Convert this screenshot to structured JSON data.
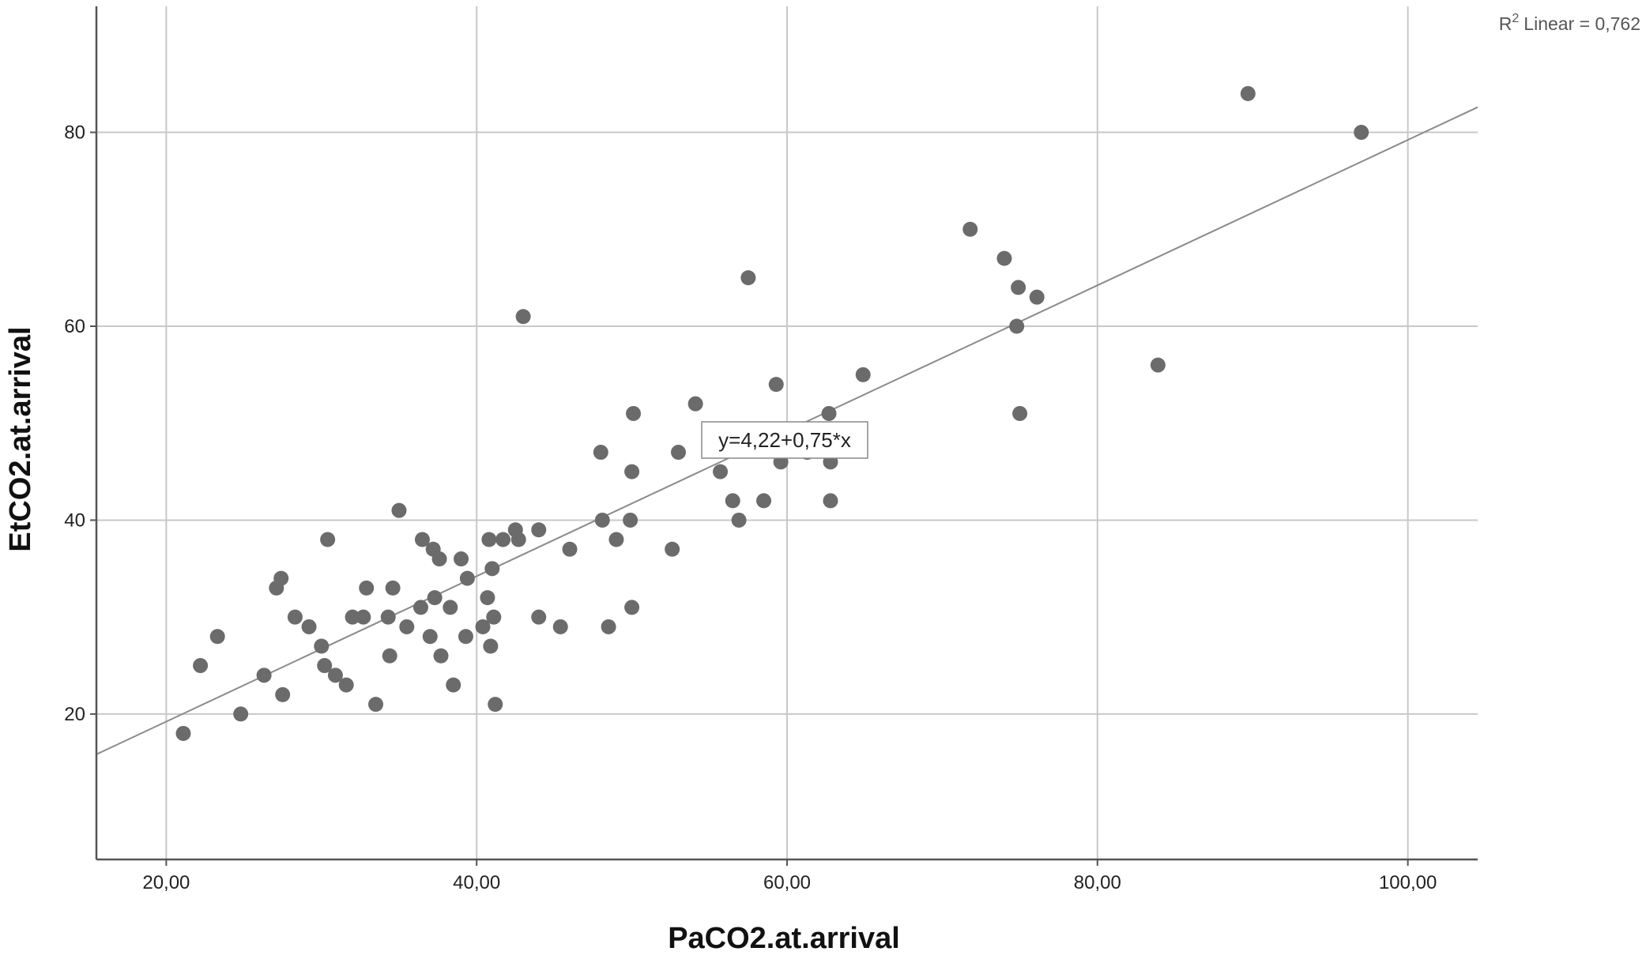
{
  "chart_data": {
    "type": "scatter",
    "xlabel": "PaCO2.at.arrival",
    "ylabel": "EtCO2.at.arrival",
    "xlim": [
      15.5,
      104.5
    ],
    "ylim": [
      5,
      93
    ],
    "x_ticks": [
      20,
      40,
      60,
      80,
      100
    ],
    "x_tick_labels": [
      "20,00",
      "40,00",
      "60,00",
      "80,00",
      "100,00"
    ],
    "y_ticks": [
      20,
      40,
      60,
      80
    ],
    "y_tick_labels": [
      "20",
      "40",
      "60",
      "80"
    ],
    "grid": true,
    "r2_label": "Linear = 0,762",
    "r2_prefix": "R",
    "r2_superscript": "2",
    "fit_line": {
      "intercept": 4.22,
      "slope": 0.75,
      "label": "y=4,22+0,75*x"
    },
    "colors": {
      "points": "#6b6b6b",
      "line": "#8a8a8a",
      "grid": "#c8c8c8",
      "axis": "#555555"
    },
    "points": [
      [
        21.1,
        18
      ],
      [
        22.2,
        25
      ],
      [
        23.3,
        28
      ],
      [
        24.8,
        20
      ],
      [
        26.3,
        24
      ],
      [
        27.1,
        33
      ],
      [
        27.4,
        34
      ],
      [
        27.5,
        22
      ],
      [
        28.3,
        30
      ],
      [
        29.2,
        29
      ],
      [
        30.0,
        27
      ],
      [
        30.2,
        25
      ],
      [
        30.4,
        38
      ],
      [
        30.9,
        24
      ],
      [
        31.6,
        23
      ],
      [
        32.0,
        30
      ],
      [
        32.7,
        30
      ],
      [
        32.9,
        33
      ],
      [
        33.5,
        21
      ],
      [
        34.3,
        30
      ],
      [
        34.4,
        26
      ],
      [
        34.6,
        33
      ],
      [
        35.0,
        41
      ],
      [
        35.5,
        29
      ],
      [
        36.4,
        31
      ],
      [
        36.5,
        38
      ],
      [
        37.0,
        28
      ],
      [
        37.2,
        37
      ],
      [
        37.3,
        32
      ],
      [
        37.6,
        36
      ],
      [
        37.7,
        26
      ],
      [
        38.3,
        31
      ],
      [
        38.5,
        23
      ],
      [
        39.0,
        36
      ],
      [
        39.3,
        28
      ],
      [
        39.4,
        34
      ],
      [
        40.4,
        29
      ],
      [
        40.7,
        32
      ],
      [
        40.8,
        38
      ],
      [
        40.9,
        27
      ],
      [
        41.0,
        35
      ],
      [
        41.1,
        30
      ],
      [
        41.2,
        21
      ],
      [
        41.7,
        38
      ],
      [
        42.5,
        39
      ],
      [
        42.7,
        38
      ],
      [
        43.0,
        61
      ],
      [
        44.0,
        39
      ],
      [
        44.0,
        30
      ],
      [
        45.4,
        29
      ],
      [
        46.0,
        37
      ],
      [
        48.0,
        47
      ],
      [
        48.1,
        40
      ],
      [
        48.5,
        29
      ],
      [
        49.0,
        38
      ],
      [
        49.9,
        40
      ],
      [
        50.0,
        45
      ],
      [
        50.0,
        31
      ],
      [
        50.1,
        51
      ],
      [
        52.6,
        37
      ],
      [
        53.0,
        47
      ],
      [
        54.1,
        52
      ],
      [
        55.7,
        45
      ],
      [
        56.5,
        42
      ],
      [
        56.9,
        40
      ],
      [
        57.5,
        65
      ],
      [
        58.5,
        42
      ],
      [
        59.3,
        54
      ],
      [
        59.6,
        46
      ],
      [
        61.3,
        47
      ],
      [
        62.7,
        51
      ],
      [
        62.8,
        46
      ],
      [
        62.8,
        42
      ],
      [
        64.9,
        55
      ],
      [
        71.8,
        70
      ],
      [
        74.0,
        67
      ],
      [
        74.8,
        60
      ],
      [
        74.9,
        64
      ],
      [
        75.0,
        51
      ],
      [
        76.1,
        63
      ],
      [
        83.9,
        56
      ],
      [
        89.7,
        84
      ],
      [
        97.0,
        80
      ]
    ]
  }
}
